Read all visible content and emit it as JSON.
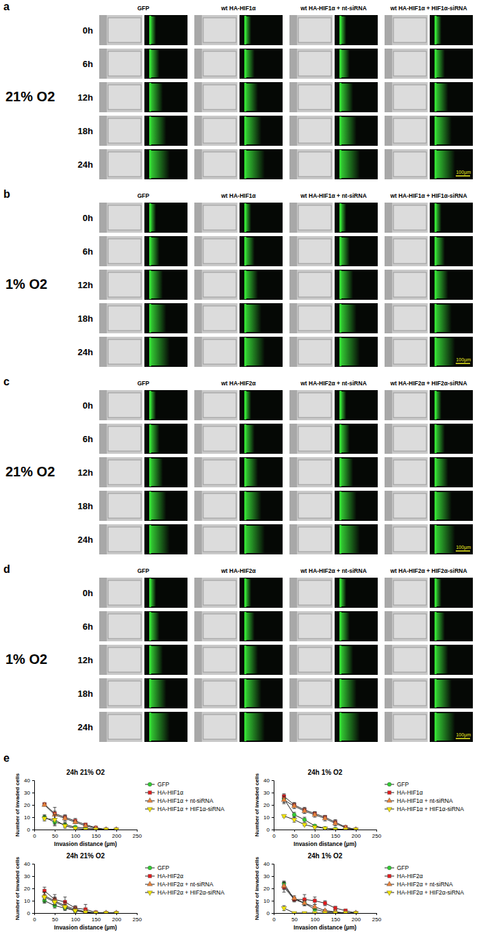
{
  "figure": {
    "image_panels": [
      {
        "letter": "a",
        "condition": "21% O2",
        "columns": [
          "GFP",
          "wt HA-HIF1α",
          "wt HA-HIF1α + nt-siRNA",
          "wt HA-HIF1α + HIF1α-siRNA"
        ],
        "rows": [
          "0h",
          "6h",
          "12h",
          "18h",
          "24h"
        ],
        "scale_bar": "100µm"
      },
      {
        "letter": "b",
        "condition": "1% O2",
        "columns": [
          "GFP",
          "wt HA-HIF1α",
          "wt HA-HIF1α + nt-siRNA",
          "wt HA-HIF1α + HIF1α-siRNA"
        ],
        "rows": [
          "0h",
          "6h",
          "12h",
          "18h",
          "24h"
        ],
        "scale_bar": "100µm"
      },
      {
        "letter": "c",
        "condition": "21% O2",
        "columns": [
          "GFP",
          "wt HA-HIF2α",
          "wt HA-HIF2α + nt-siRNA",
          "wt HA-HIF2α + HIF2α-siRNA"
        ],
        "rows": [
          "0h",
          "6h",
          "12h",
          "18h",
          "24h"
        ],
        "scale_bar": "100µm"
      },
      {
        "letter": "d",
        "condition": "1% O2",
        "columns": [
          "GFP",
          "wt HA-HIF2α",
          "wt HA-HIF2α + nt-siRNA",
          "wt HA-HIF2α + HIF2α-siRNA"
        ],
        "rows": [
          "0h",
          "6h",
          "12h",
          "18h",
          "24h"
        ],
        "scale_bar": "100µm"
      }
    ],
    "chart_panel_letter": "e"
  },
  "chart_data": [
    {
      "type": "line",
      "title": "24h 21% O2",
      "x_label": "Invasion distance (µm)",
      "y_label": "Number of invaded cells",
      "x": [
        25,
        50,
        75,
        100,
        125,
        150,
        175,
        200
      ],
      "xlim": [
        0,
        250
      ],
      "xticks": [
        0,
        50,
        100,
        150,
        200,
        250
      ],
      "ylim": [
        0,
        40
      ],
      "yticks": [
        0,
        10,
        20,
        30,
        40
      ],
      "grid": false,
      "legend": "right",
      "series": [
        {
          "name": "GFP",
          "color": "#33cc33",
          "marker": "circle",
          "values": [
            10,
            6,
            4,
            2,
            1,
            0.5,
            0,
            0
          ],
          "errors": [
            2,
            3,
            2,
            1,
            1,
            0.5,
            0,
            0
          ]
        },
        {
          "name": "HA-HIF1α",
          "color": "#e41a1c",
          "marker": "square",
          "values": [
            20.5,
            13,
            10,
            7,
            4,
            1.5,
            0,
            0
          ],
          "errors": [
            1,
            5,
            2,
            2,
            1,
            0.5,
            0,
            0
          ]
        },
        {
          "name": "HA-HIF1α + nt-siRNA",
          "color": "#e8823a",
          "marker": "triangle",
          "values": [
            20,
            12,
            9,
            6,
            3,
            1,
            0,
            0
          ],
          "errors": [
            1,
            3,
            2,
            1,
            1,
            0.5,
            0,
            0
          ]
        },
        {
          "name": "HA-HIF1α + HIF1α-siRNA",
          "color": "#f2e500",
          "marker": "triangle-down",
          "values": [
            9,
            8,
            3,
            1,
            0,
            0,
            0,
            0
          ],
          "errors": [
            2,
            4,
            2,
            1,
            0.5,
            0,
            0,
            0
          ]
        }
      ]
    },
    {
      "type": "line",
      "title": "24h 1% O2",
      "x_label": "Invasion distance (µm)",
      "y_label": "Number of invaded cells",
      "x": [
        25,
        50,
        75,
        100,
        125,
        150,
        175,
        200
      ],
      "xlim": [
        0,
        250
      ],
      "xticks": [
        0,
        50,
        100,
        150,
        200,
        250
      ],
      "ylim": [
        0,
        40
      ],
      "yticks": [
        0,
        10,
        20,
        30,
        40
      ],
      "grid": false,
      "legend": "right",
      "series": [
        {
          "name": "GFP",
          "color": "#33cc33",
          "marker": "circle",
          "values": [
            25,
            12,
            8,
            3,
            1,
            0.5,
            0,
            0
          ],
          "errors": [
            3,
            2,
            2,
            1,
            1,
            0.5,
            0,
            0
          ]
        },
        {
          "name": "HA-HIF1α",
          "color": "#e41a1c",
          "marker": "square",
          "values": [
            27,
            20,
            16,
            13,
            10,
            6,
            2,
            0
          ],
          "errors": [
            2,
            2,
            2,
            1.5,
            1.5,
            2,
            1,
            0
          ]
        },
        {
          "name": "HA-HIF1α + nt-siRNA",
          "color": "#e8823a",
          "marker": "triangle",
          "values": [
            24,
            19,
            15,
            12,
            9,
            5,
            1.5,
            0
          ],
          "errors": [
            3,
            2,
            2,
            2,
            2,
            2,
            1,
            0
          ]
        },
        {
          "name": "HA-HIF1α + HIF1α-siRNA",
          "color": "#f2e500",
          "marker": "triangle-down",
          "values": [
            11,
            8,
            4,
            2,
            1,
            0,
            0,
            0
          ],
          "errors": [
            1,
            2,
            1,
            1,
            0.5,
            0,
            0,
            0
          ]
        }
      ]
    },
    {
      "type": "line",
      "title": "24h 21% O2",
      "x_label": "Invasion distance (µm)",
      "y_label": "Number of invaded cells",
      "x": [
        25,
        50,
        75,
        100,
        125,
        150,
        175,
        200
      ],
      "xlim": [
        0,
        250
      ],
      "xticks": [
        0,
        50,
        100,
        150,
        200,
        250
      ],
      "ylim": [
        0,
        40
      ],
      "yticks": [
        0,
        10,
        20,
        30,
        40
      ],
      "grid": false,
      "legend": "right",
      "series": [
        {
          "name": "GFP",
          "color": "#33cc33",
          "marker": "circle",
          "values": [
            10,
            6,
            4,
            2,
            1,
            0,
            0,
            0
          ],
          "errors": [
            2,
            2,
            2,
            1,
            1,
            0,
            0,
            0
          ]
        },
        {
          "name": "HA-HIF2α",
          "color": "#e41a1c",
          "marker": "square",
          "values": [
            18,
            11,
            9,
            4,
            3,
            0.5,
            0,
            0
          ],
          "errors": [
            3,
            4,
            4,
            2,
            4,
            0.5,
            0,
            0
          ]
        },
        {
          "name": "HA-HIF2α + nt-siRNA",
          "color": "#e8823a",
          "marker": "triangle",
          "values": [
            14,
            10,
            6,
            3,
            1,
            0,
            0,
            0
          ],
          "errors": [
            3,
            3,
            3,
            2,
            1,
            0,
            0,
            0
          ]
        },
        {
          "name": "HA-HIF2α + HIF2α-siRNA",
          "color": "#f2e500",
          "marker": "triangle-down",
          "values": [
            13,
            9,
            5,
            2,
            0.5,
            0,
            0,
            0
          ],
          "errors": [
            4,
            3,
            2,
            2,
            0.5,
            0,
            0,
            0
          ]
        }
      ]
    },
    {
      "type": "line",
      "title": "24h 1% O2",
      "x_label": "Invasion distance (µm)",
      "y_label": "Number of invaded cells",
      "x": [
        25,
        50,
        75,
        100,
        125,
        150,
        175,
        200
      ],
      "xlim": [
        0,
        250
      ],
      "xticks": [
        0,
        50,
        100,
        150,
        200,
        250
      ],
      "ylim": [
        0,
        40
      ],
      "yticks": [
        0,
        10,
        20,
        30,
        40
      ],
      "grid": false,
      "legend": "right",
      "series": [
        {
          "name": "GFP",
          "color": "#33cc33",
          "marker": "circle",
          "values": [
            24,
            11,
            8,
            3,
            1,
            0.5,
            0,
            0
          ],
          "errors": [
            2,
            2,
            2,
            1,
            1,
            0.5,
            0,
            0
          ]
        },
        {
          "name": "HA-HIF2α",
          "color": "#e41a1c",
          "marker": "square",
          "values": [
            21,
            11,
            11,
            10,
            8,
            4,
            2,
            0
          ],
          "errors": [
            4,
            1,
            4,
            3,
            2,
            1.5,
            1,
            0
          ]
        },
        {
          "name": "HA-HIF2α + nt-siRNA",
          "color": "#e8823a",
          "marker": "triangle",
          "values": [
            22,
            12,
            8,
            5,
            2,
            1,
            0,
            0
          ],
          "errors": [
            3,
            2,
            2,
            2,
            1,
            1,
            0,
            0
          ]
        },
        {
          "name": "HA-HIF2α + HIF2α-siRNA",
          "color": "#f2e500",
          "marker": "triangle-down",
          "values": [
            4,
            0,
            0,
            0,
            0,
            0,
            0,
            0
          ],
          "errors": [
            2,
            0,
            0,
            0,
            0,
            0,
            0,
            0
          ]
        }
      ]
    }
  ]
}
